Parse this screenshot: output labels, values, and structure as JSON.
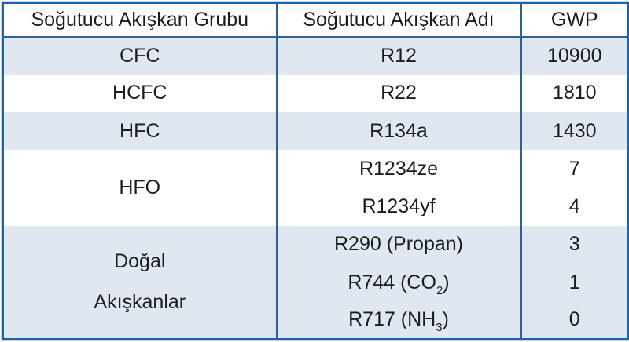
{
  "table": {
    "headers": [
      "Soğutucu Akışkan Grubu",
      "Soğutucu Akışkan Adı",
      "GWP"
    ],
    "groups": [
      {
        "label": "CFC",
        "refrigerants": [
          {
            "name": "R12",
            "gwp": "10900"
          }
        ]
      },
      {
        "label": "HCFC",
        "refrigerants": [
          {
            "name": "R22",
            "gwp": "1810"
          }
        ]
      },
      {
        "label": "HFC",
        "refrigerants": [
          {
            "name": "R134a",
            "gwp": "1430"
          }
        ]
      },
      {
        "label": "HFO",
        "refrigerants": [
          {
            "name": "R1234ze",
            "gwp": "7"
          },
          {
            "name": "R1234yf",
            "gwp": "4"
          }
        ]
      },
      {
        "label_line1": "Doğal",
        "label_line2": "Akışkanlar",
        "refrigerants": [
          {
            "name": "R290 (Propan)",
            "gwp": "3"
          },
          {
            "name_base": "R744 (CO",
            "name_subscript": "2",
            "name_suffix": ")",
            "gwp": "1"
          },
          {
            "name_base": "R717 (NH",
            "name_subscript": "3",
            "name_suffix": ")",
            "gwp": "0"
          }
        ]
      }
    ]
  },
  "colors": {
    "outer_border": "#1c63ab",
    "grid_line": "#30608e",
    "alt_row_background": "#dfe7f1",
    "row_background": "#ffffff",
    "text": "#1d1d1f"
  },
  "chart_data": {
    "type": "table",
    "title": "",
    "columns": [
      "Soğutucu Akışkan Grubu",
      "Soğutucu Akışkan Adı",
      "GWP"
    ],
    "rows": [
      [
        "CFC",
        "R12",
        10900
      ],
      [
        "HCFC",
        "R22",
        1810
      ],
      [
        "HFC",
        "R134a",
        1430
      ],
      [
        "HFO",
        "R1234ze",
        7
      ],
      [
        "HFO",
        "R1234yf",
        4
      ],
      [
        "Doğal Akışkanlar",
        "R290 (Propan)",
        3
      ],
      [
        "Doğal Akışkanlar",
        "R744 (CO₂)",
        1
      ],
      [
        "Doğal Akışkanlar",
        "R717 (NH₃)",
        0
      ]
    ]
  }
}
